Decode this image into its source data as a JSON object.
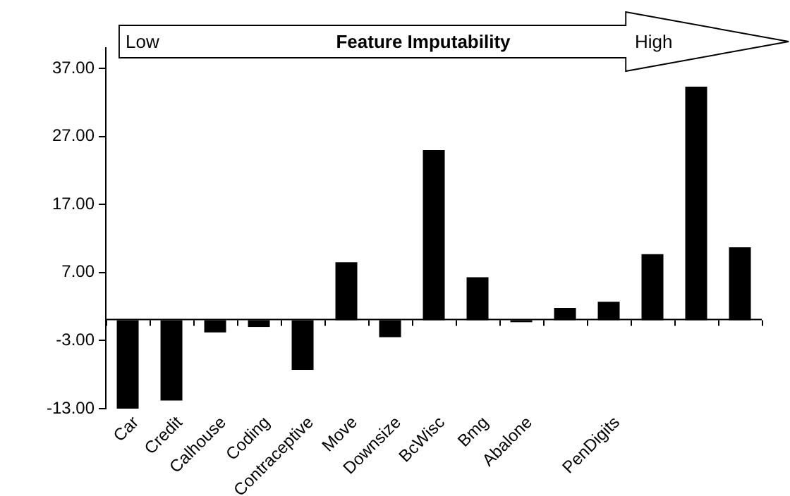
{
  "chart_data": {
    "type": "bar",
    "title": "Feature Imputability",
    "annotations": [
      "Low",
      "High"
    ],
    "categories": [
      "Car",
      "Credit",
      "Calhouse",
      "Coding",
      "Contraceptive",
      "Move",
      "Downsize",
      "BcWisc",
      "Bmg",
      "Abalone",
      null,
      "PenDigits",
      null,
      null,
      null
    ],
    "values": [
      -13,
      -11.8,
      -1.8,
      -1,
      -7.3,
      8.5,
      -2.5,
      25,
      6.3,
      -0.3,
      1.8,
      2.7,
      9.7,
      34.3,
      10.7
    ],
    "color": "#000000",
    "ylim": [
      -13,
      40
    ],
    "yticks": [
      {
        "value": -13,
        "label": "-13.00"
      },
      {
        "value": -3,
        "label": "-3.00"
      },
      {
        "value": 7,
        "label": "7.00"
      },
      {
        "value": 17,
        "label": "17.00"
      },
      {
        "value": 27,
        "label": "27.00"
      },
      {
        "value": 37,
        "label": "37.00"
      }
    ],
    "grid": false,
    "legend": false
  }
}
